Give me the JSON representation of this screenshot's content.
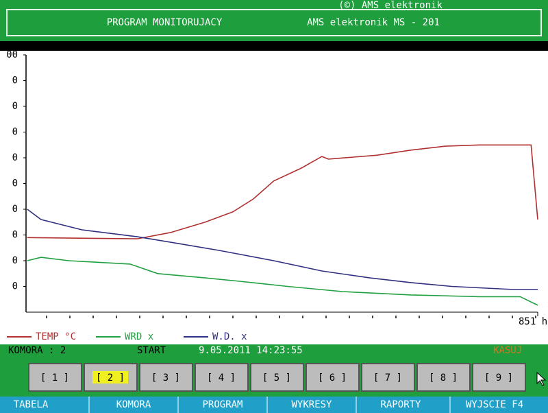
{
  "header": {
    "copyright": "(©) AMS elektronik",
    "program": "PROGRAM MONITORUJACY",
    "device": "AMS elektronik MS - 201"
  },
  "chart_data": {
    "type": "line",
    "xlim": [
      0,
      851
    ],
    "xticks": [
      {
        "value": 851,
        "label": "851 h"
      }
    ],
    "ylim": [
      0,
      100
    ],
    "yticks": [
      {
        "value": 100,
        "label": "00"
      },
      {
        "value": 90,
        "label": "0"
      },
      {
        "value": 80,
        "label": "0"
      },
      {
        "value": 70,
        "label": "0"
      },
      {
        "value": 60,
        "label": "0"
      },
      {
        "value": 50,
        "label": "0"
      },
      {
        "value": 40,
        "label": "0"
      },
      {
        "value": 30,
        "label": "0"
      },
      {
        "value": 20,
        "label": "0"
      },
      {
        "value": 10,
        "label": "0"
      }
    ],
    "series": [
      {
        "name": "TEMP °C",
        "color": "#b03030",
        "x": [
          2,
          185,
          241,
          298,
          344,
          378,
          412,
          458,
          492,
          503,
          583,
          640,
          697,
          754,
          840,
          851
        ],
        "values": [
          29,
          28.5,
          31,
          35,
          39,
          44,
          51,
          56,
          60.5,
          59.5,
          61,
          63,
          64.5,
          65,
          65,
          36
        ]
      },
      {
        "name": "WRD x",
        "color": "#20a040",
        "x": [
          2,
          25,
          71,
          173,
          219,
          298,
          355,
          435,
          526,
          640,
          754,
          822,
          851
        ],
        "values": [
          20,
          21.3,
          20,
          18.7,
          15,
          13.3,
          12,
          10,
          8,
          6.7,
          6,
          6,
          2.7
        ]
      },
      {
        "name": "W.D. x",
        "color": "#303080",
        "x": [
          2,
          25,
          93,
          185,
          253,
          321,
          412,
          492,
          572,
          640,
          708,
          811,
          851
        ],
        "values": [
          40,
          36,
          32,
          29.3,
          26.7,
          24,
          20,
          16,
          13.3,
          11.5,
          10,
          8.8,
          8.8
        ]
      }
    ]
  },
  "status": {
    "chamber": "KOMORA : 2",
    "start_label": "START",
    "start_time": "9.05.2011 14:23:55",
    "action": "KASUJ"
  },
  "chambers": [
    "[ 1 ]",
    "[ 2 ]",
    "[ 3 ]",
    "[ 4 ]",
    "[ 5 ]",
    "[ 6 ]",
    "[ 7 ]",
    "[ 8 ]",
    "[ 9 ]"
  ],
  "selected_chamber": 1,
  "menu": [
    "TABELA",
    "KOMORA",
    "PROGRAM",
    "WYKRESY",
    "RAPORTY",
    "WYJSCIE F4"
  ]
}
